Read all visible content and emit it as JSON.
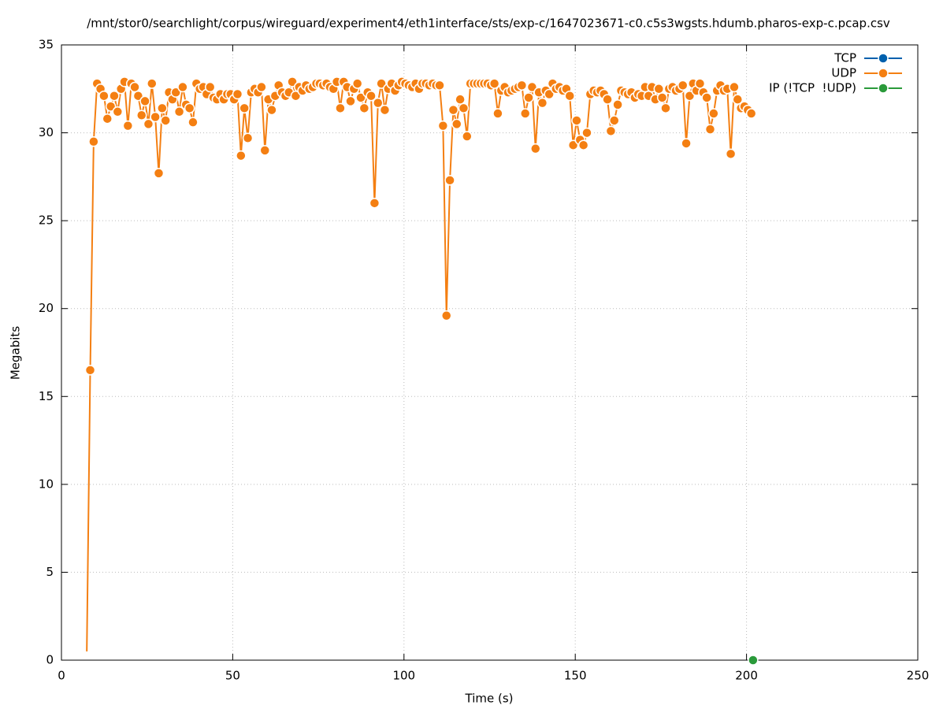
{
  "chart_data": {
    "type": "line",
    "title": "/mnt/stor0/searchlight/corpus/wireguard/experiment4/eth1interface/sts/exp-c/1647023671-c0.c5s3wgsts.hdumb.pharos-exp-c.pcap.csv",
    "xlabel": "Time (s)",
    "ylabel": "Megabits",
    "xlim": [
      0,
      250
    ],
    "xticks": [
      0,
      50,
      100,
      150,
      200,
      250
    ],
    "ylim": [
      0,
      35
    ],
    "yticks": [
      0,
      5,
      10,
      15,
      20,
      25,
      30,
      35
    ],
    "grid": true,
    "legend": "upper right",
    "series": [
      {
        "name": "TCP",
        "color": "#0060ad",
        "x": [],
        "values": []
      },
      {
        "name": "UDP",
        "color": "#f47f12",
        "x": [
          7.4,
          8.4,
          9.4,
          10.4,
          11.4,
          12.4,
          13.4,
          14.4,
          15.4,
          16.4,
          17.4,
          18.4,
          19.4,
          20.4,
          21.4,
          22.4,
          23.4,
          24.4,
          25.4,
          26.4,
          27.4,
          28.4,
          29.4,
          30.4,
          31.4,
          32.4,
          33.4,
          34.4,
          35.4,
          36.4,
          37.4,
          38.4,
          39.4,
          40.4,
          41.4,
          42.4,
          43.4,
          44.4,
          45.4,
          46.4,
          47.4,
          48.4,
          49.4,
          50.4,
          51.4,
          52.4,
          53.4,
          54.4,
          55.4,
          56.4,
          57.4,
          58.4,
          59.4,
          60.4,
          61.4,
          62.4,
          63.4,
          64.4,
          65.4,
          66.4,
          67.4,
          68.4,
          69.4,
          70.4,
          71.4,
          72.4,
          73.4,
          74.4,
          75.4,
          76.4,
          77.4,
          78.4,
          79.4,
          80.4,
          81.4,
          82.4,
          83.4,
          84.4,
          85.4,
          86.4,
          87.4,
          88.4,
          89.4,
          90.4,
          91.4,
          92.4,
          93.4,
          94.4,
          95.4,
          96.4,
          97.4,
          98.4,
          99.4,
          100.4,
          101.4,
          102.4,
          103.4,
          104.4,
          105.4,
          106.4,
          107.4,
          108.4,
          109.4,
          110.4,
          111.4,
          112.4,
          113.4,
          114.4,
          115.4,
          116.4,
          117.4,
          118.4,
          119.4,
          120.4,
          121.4,
          122.4,
          123.4,
          124.4,
          125.4,
          126.4,
          127.4,
          128.4,
          129.4,
          130.4,
          131.4,
          132.4,
          133.4,
          134.4,
          135.4,
          136.4,
          137.4,
          138.4,
          139.4,
          140.4,
          141.4,
          142.4,
          143.4,
          144.4,
          145.4,
          146.4,
          147.4,
          148.4,
          149.4,
          150.4,
          151.4,
          152.4,
          153.4,
          154.4,
          155.4,
          156.4,
          157.4,
          158.4,
          159.4,
          160.4,
          161.4,
          162.4,
          163.4,
          164.4,
          165.4,
          166.4,
          167.4,
          168.4,
          169.4,
          170.4,
          171.4,
          172.4,
          173.4,
          174.4,
          175.4,
          176.4,
          177.4,
          178.4,
          179.4,
          180.4,
          181.4,
          182.4,
          183.4,
          184.4,
          185.4,
          186.4,
          187.4,
          188.4,
          189.4,
          190.4,
          191.4,
          192.4,
          193.4,
          194.4,
          195.4,
          196.4,
          197.4,
          198.4,
          199.4,
          200.4,
          201.4
        ],
        "values": [
          0.5,
          16.5,
          29.5,
          32.8,
          32.5,
          32.1,
          30.8,
          31.5,
          32.1,
          31.2,
          32.5,
          32.9,
          30.4,
          32.8,
          32.6,
          32.1,
          31.0,
          31.8,
          30.5,
          32.8,
          30.9,
          27.7,
          31.4,
          30.7,
          32.3,
          31.9,
          32.3,
          31.2,
          32.6,
          31.6,
          31.4,
          30.6,
          32.8,
          32.5,
          32.6,
          32.2,
          32.6,
          32.0,
          31.9,
          32.2,
          31.9,
          32.2,
          32.2,
          31.9,
          32.2,
          28.7,
          31.4,
          29.7,
          32.3,
          32.5,
          32.3,
          32.6,
          29.0,
          31.9,
          31.3,
          32.1,
          32.7,
          32.3,
          32.1,
          32.3,
          32.9,
          32.1,
          32.6,
          32.4,
          32.7,
          32.5,
          32.6,
          32.8,
          32.8,
          32.7,
          32.8,
          32.6,
          32.5,
          32.9,
          31.4,
          32.9,
          32.6,
          31.8,
          32.5,
          32.8,
          32.0,
          31.4,
          32.3,
          32.1,
          26.0,
          31.7,
          32.8,
          31.3,
          32.5,
          32.8,
          32.4,
          32.7,
          32.9,
          32.8,
          32.7,
          32.6,
          32.8,
          32.5,
          32.8,
          32.8,
          32.7,
          32.8,
          32.7,
          32.7,
          30.4,
          19.6,
          27.3,
          31.3,
          30.5,
          31.9,
          31.4,
          29.8,
          32.8,
          32.8,
          32.8,
          32.8,
          32.8,
          32.8,
          32.7,
          32.8,
          31.1,
          32.4,
          32.6,
          32.3,
          32.4,
          32.5,
          32.6,
          32.7,
          31.1,
          32.0,
          32.6,
          29.1,
          32.3,
          31.7,
          32.4,
          32.2,
          32.8,
          32.5,
          32.6,
          32.4,
          32.5,
          32.1,
          29.3,
          30.7,
          29.6,
          29.3,
          30.0,
          32.2,
          32.4,
          32.3,
          32.4,
          32.2,
          31.9,
          30.1,
          30.7,
          31.6,
          32.4,
          32.3,
          32.2,
          32.3,
          32.0,
          32.2,
          32.1,
          32.6,
          32.1,
          32.6,
          31.9,
          32.5,
          32.0,
          31.4,
          32.5,
          32.6,
          32.4,
          32.5,
          32.7,
          29.4,
          32.1,
          32.8,
          32.4,
          32.8,
          32.3,
          32.0,
          30.2,
          31.1,
          32.4,
          32.7,
          32.4,
          32.5,
          28.8,
          32.6,
          31.9,
          31.4,
          31.5,
          31.3,
          31.1
        ]
      },
      {
        "name": "IP (!TCP  !UDP)",
        "color": "#2a9a3a",
        "x": [
          201.9
        ],
        "values": [
          0
        ]
      }
    ]
  }
}
